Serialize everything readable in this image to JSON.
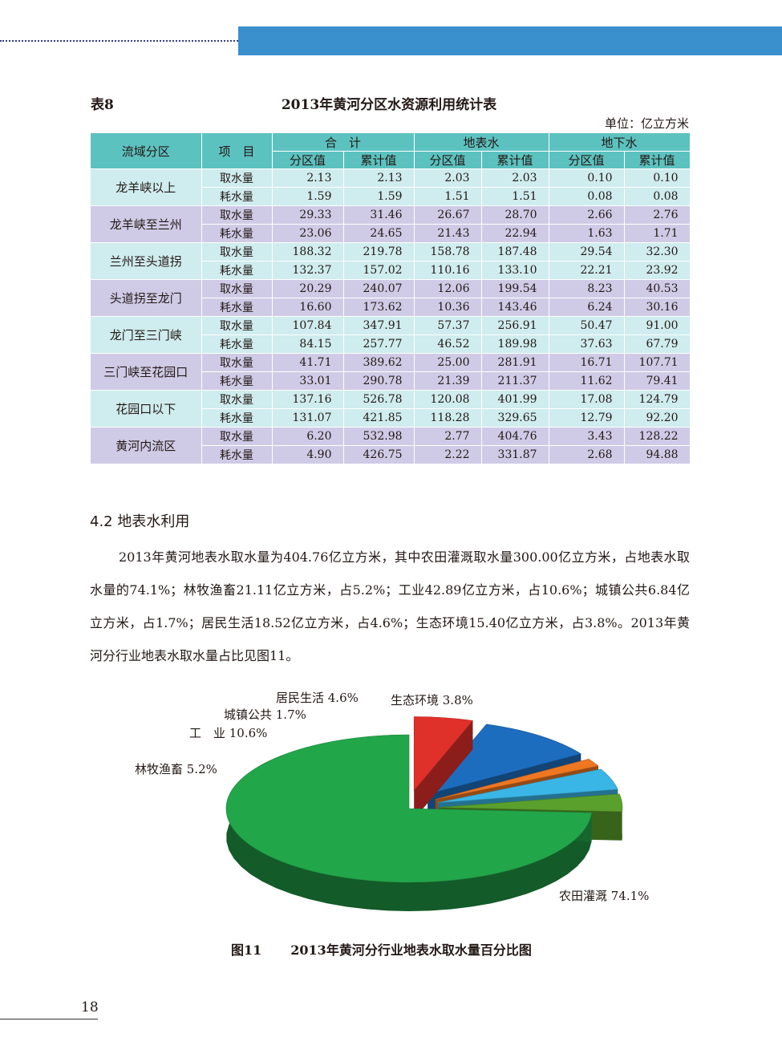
{
  "table": {
    "label": "表8",
    "title": "2013年黄河分区水资源利用统计表",
    "unit": "单位：亿立方米",
    "headers": {
      "region": "流域分区",
      "item": "项　目",
      "group_total": "合　计",
      "group_surface": "地表水",
      "group_ground": "地下水",
      "zone_value": "分区值",
      "cumulative_value": "累计值"
    },
    "rows": [
      {
        "region": "龙羊峡以上",
        "items": [
          {
            "item": "取水量",
            "values": [
              "2.13",
              "2.13",
              "2.03",
              "2.03",
              "0.10",
              "0.10"
            ]
          },
          {
            "item": "耗水量",
            "values": [
              "1.59",
              "1.59",
              "1.51",
              "1.51",
              "0.08",
              "0.08"
            ]
          }
        ]
      },
      {
        "region": "龙羊峡至兰州",
        "items": [
          {
            "item": "取水量",
            "values": [
              "29.33",
              "31.46",
              "26.67",
              "28.70",
              "2.66",
              "2.76"
            ]
          },
          {
            "item": "耗水量",
            "values": [
              "23.06",
              "24.65",
              "21.43",
              "22.94",
              "1.63",
              "1.71"
            ]
          }
        ]
      },
      {
        "region": "兰州至头道拐",
        "items": [
          {
            "item": "取水量",
            "values": [
              "188.32",
              "219.78",
              "158.78",
              "187.48",
              "29.54",
              "32.30"
            ]
          },
          {
            "item": "耗水量",
            "values": [
              "132.37",
              "157.02",
              "110.16",
              "133.10",
              "22.21",
              "23.92"
            ]
          }
        ]
      },
      {
        "region": "头道拐至龙门",
        "items": [
          {
            "item": "取水量",
            "values": [
              "20.29",
              "240.07",
              "12.06",
              "199.54",
              "8.23",
              "40.53"
            ]
          },
          {
            "item": "耗水量",
            "values": [
              "16.60",
              "173.62",
              "10.36",
              "143.46",
              "6.24",
              "30.16"
            ]
          }
        ]
      },
      {
        "region": "龙门至三门峡",
        "items": [
          {
            "item": "取水量",
            "values": [
              "107.84",
              "347.91",
              "57.37",
              "256.91",
              "50.47",
              "91.00"
            ]
          },
          {
            "item": "耗水量",
            "values": [
              "84.15",
              "257.77",
              "46.52",
              "189.98",
              "37.63",
              "67.79"
            ]
          }
        ]
      },
      {
        "region": "三门峡至花园口",
        "items": [
          {
            "item": "取水量",
            "values": [
              "41.71",
              "389.62",
              "25.00",
              "281.91",
              "16.71",
              "107.71"
            ]
          },
          {
            "item": "耗水量",
            "values": [
              "33.01",
              "290.78",
              "21.39",
              "211.37",
              "11.62",
              "79.41"
            ]
          }
        ]
      },
      {
        "region": "花园口以下",
        "items": [
          {
            "item": "取水量",
            "values": [
              "137.16",
              "526.78",
              "120.08",
              "401.99",
              "17.08",
              "124.79"
            ]
          },
          {
            "item": "耗水量",
            "values": [
              "131.07",
              "421.85",
              "118.28",
              "329.65",
              "12.79",
              "92.20"
            ]
          }
        ]
      },
      {
        "region": "黄河内流区",
        "items": [
          {
            "item": "取水量",
            "values": [
              "6.20",
              "532.98",
              "2.77",
              "404.76",
              "3.43",
              "128.22"
            ]
          },
          {
            "item": "耗水量",
            "values": [
              "4.90",
              "426.75",
              "2.22",
              "331.87",
              "2.68",
              "94.88"
            ]
          }
        ]
      }
    ]
  },
  "section": {
    "heading": "4.2  地表水利用",
    "paragraph": "2013年黄河地表水取水量为404.76亿立方米，其中农田灌溉取水量300.00亿立方米，占地表水取水量的74.1%；林牧渔畜21.11亿立方米，占5.2%；工业42.89亿立方米，占10.6%；城镇公共6.84亿立方米，占1.7%；居民生活18.52亿立方米，占4.6%；生态环境15.40亿立方米，占3.8%。2013年黄河分行业地表水取水量占比见图11。"
  },
  "chart_data": {
    "type": "pie",
    "title": "2013年黄河分行业地表水取水量百分比图",
    "series": [
      {
        "values": [
          74.1,
          5.2,
          10.6,
          1.7,
          4.6,
          3.8
        ],
        "labels": [
          "农田灌溉 74.1%",
          "林牧渔畜 5.2%",
          "工　业 10.6%",
          "城镇公共 1.7%",
          "居民生活 4.6%",
          "生态环境 3.8%"
        ],
        "colors": [
          "#22a64a",
          "#e0302a",
          "#1d6dbf",
          "#ee7722",
          "#3ab6e6",
          "#5aa02c"
        ]
      }
    ]
  },
  "figure": {
    "number": "图11",
    "caption": "2013年黄河分行业地表水取水量百分比图"
  },
  "page_number": "18",
  "colors": {
    "header_bar": "#3a8fcd",
    "table_header": "#5cc2c0",
    "row_band_a": "#cfecee",
    "row_band_b": "#cfcbe6"
  }
}
